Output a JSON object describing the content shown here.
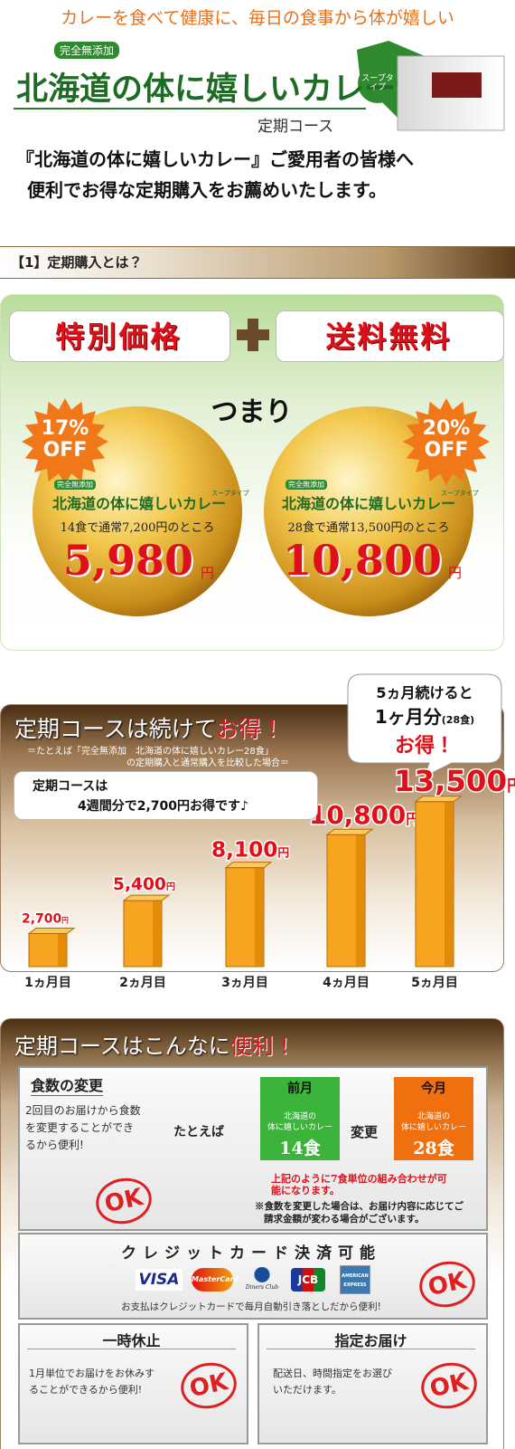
{
  "header": {
    "tagline": "カレーを食べて健康に、毎日の食事から体が嬉しい",
    "logo": {
      "badge": "完全無添加",
      "name": "北海道の体に嬉しいカレー",
      "type": "スープタイプ",
      "course": "定期コース"
    },
    "intro": [
      "『北海道の体に嬉しいカレー』ご愛用者の皆様へ",
      "便利でお得な定期購入をお薦めいたします。"
    ]
  },
  "section1": {
    "heading": "【1】定期購入とは？",
    "benefits": [
      "特別価格",
      "送料無料"
    ],
    "summary": "つまり",
    "offers": [
      {
        "discount": "17%",
        "off": "OFF",
        "note": "14食で通常7,200円のところ",
        "price": "5,980",
        "unit": "円"
      },
      {
        "discount": "20%",
        "off": "OFF",
        "note": "28食で通常13,500円のところ",
        "price": "10,800",
        "unit": "円"
      }
    ]
  },
  "section2": {
    "title": "定期コースは続けて",
    "title_emph": "お得！",
    "subtitle": [
      "＝たとえば「完全無添加　北海道の体に嬉しいカレー28食」",
      "の定期購入と通常購入を比較した場合＝"
    ],
    "note": [
      "定期コースは",
      "4週間分で2,700円お得です♪"
    ],
    "callout": [
      "5ヵ月続けると",
      "1ヶ月分",
      "(28食)",
      "お得！"
    ],
    "bars": [
      {
        "value": 2700,
        "label": "2,700",
        "unit": "円",
        "month": "1ヵ月目"
      },
      {
        "value": 5400,
        "label": "5,400",
        "unit": "円",
        "month": "2ヵ月目"
      },
      {
        "value": 8100,
        "label": "8,100",
        "unit": "円",
        "month": "3ヵ月目"
      },
      {
        "value": 10800,
        "label": "10,800",
        "unit": "円",
        "month": "4ヵ月目"
      },
      {
        "value": 13500,
        "label": "13,500",
        "unit": "円",
        "month": "5ヵ月目"
      }
    ]
  },
  "section3": {
    "title": "定期コースはこんなに",
    "title_emph": "便利",
    "title_end": "！",
    "meal_change": {
      "heading": "食数の変更",
      "text": [
        "2回目のお届けから食数",
        "を変更することができ",
        "るから便利!"
      ],
      "example": "たとえば",
      "before": {
        "label": "前月",
        "product": [
          "北海道の",
          "体に嬉しいカレー"
        ],
        "count": "14食"
      },
      "change": "変更",
      "after": {
        "label": "今月",
        "product": [
          "北海道の",
          "体に嬉しいカレー"
        ],
        "count": "28食"
      },
      "notes": [
        "上記のように7食単位の組み合わせが可",
        "能になります。"
      ],
      "remark": [
        "※食数を変更した場合は、お届け内容に応じてご",
        "請求金額が変わる場合がございます。"
      ],
      "ok": "OK"
    },
    "credit": {
      "heading": "クレジットカード決済可能",
      "cards": [
        "VISA",
        "MasterCard",
        "Diners Club",
        "JCB",
        "AMERICAN EXPRESS"
      ],
      "note": "お支払はクレジットカードで毎月自動引き落としだから便利!",
      "ok": "OK"
    },
    "pause": {
      "heading": "一時休止",
      "text": [
        "1月単位でお届けをお休みす",
        "ることができるから便利!"
      ],
      "ok": "OK"
    },
    "delivery": {
      "heading": "指定お届け",
      "text": [
        "配送日、時間指定をお選び",
        "いただけます。"
      ],
      "ok": "OK"
    }
  }
}
